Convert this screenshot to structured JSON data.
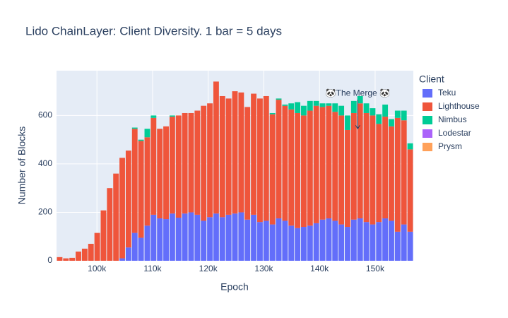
{
  "chart_data": {
    "type": "bar",
    "stacked": true,
    "title": "Lido ChainLayer: Client Diversity. 1 bar = 5 days",
    "x_label": "Epoch",
    "y_label": "Number of Blocks",
    "legend_title": "Client",
    "legend_position": "right",
    "grid": true,
    "x": [
      93300,
      94425,
      95550,
      96675,
      97800,
      98925,
      100050,
      101175,
      102300,
      103425,
      104550,
      105675,
      106800,
      107925,
      109050,
      110175,
      111300,
      112425,
      113550,
      114675,
      115800,
      116925,
      118050,
      119175,
      120300,
      121425,
      122550,
      123675,
      124800,
      125925,
      127050,
      128175,
      129300,
      130425,
      131550,
      132675,
      133800,
      134925,
      136050,
      137175,
      138300,
      139425,
      140550,
      141675,
      142800,
      143925,
      145050,
      146175,
      147300,
      148425,
      149550,
      150675,
      151800,
      152925,
      154050,
      155175,
      156300
    ],
    "series": [
      {
        "name": "Teku",
        "color": "#636efa",
        "values": [
          0,
          0,
          0,
          0,
          0,
          0,
          0,
          0,
          0,
          0,
          10,
          55,
          115,
          95,
          145,
          190,
          175,
          172,
          195,
          178,
          195,
          200,
          190,
          165,
          180,
          195,
          180,
          190,
          195,
          200,
          170,
          190,
          160,
          165,
          150,
          175,
          165,
          145,
          135,
          140,
          145,
          155,
          170,
          175,
          165,
          150,
          140,
          170,
          175,
          160,
          150,
          160,
          175,
          165,
          120,
          150,
          120
        ]
      },
      {
        "name": "Lighthouse",
        "color": "#ef553b",
        "values": [
          15,
          10,
          12,
          38,
          50,
          70,
          115,
          208,
          300,
          360,
          415,
          400,
          430,
          400,
          365,
          400,
          370,
          383,
          400,
          422,
          415,
          410,
          430,
          475,
          470,
          545,
          500,
          480,
          505,
          495,
          465,
          500,
          510,
          515,
          455,
          490,
          475,
          480,
          475,
          460,
          475,
          485,
          465,
          465,
          450,
          450,
          400,
          440,
          475,
          450,
          450,
          405,
          420,
          390,
          470,
          430,
          340
        ]
      },
      {
        "name": "Nimbus",
        "color": "#00cc96",
        "values": [
          0,
          0,
          0,
          0,
          0,
          0,
          0,
          0,
          0,
          0,
          0,
          0,
          5,
          5,
          35,
          10,
          0,
          0,
          5,
          0,
          0,
          0,
          0,
          0,
          0,
          0,
          0,
          0,
          0,
          0,
          0,
          0,
          0,
          0,
          5,
          5,
          5,
          25,
          45,
          40,
          40,
          20,
          15,
          10,
          35,
          40,
          60,
          50,
          30,
          40,
          30,
          40,
          50,
          30,
          30,
          40,
          25
        ]
      },
      {
        "name": "Lodestar",
        "color": "#ab63fa",
        "values": [
          0,
          0,
          0,
          0,
          0,
          0,
          0,
          0,
          0,
          0,
          0,
          0,
          0,
          0,
          0,
          0,
          0,
          0,
          0,
          0,
          0,
          0,
          0,
          0,
          0,
          0,
          0,
          0,
          0,
          0,
          0,
          0,
          0,
          0,
          0,
          0,
          0,
          0,
          0,
          0,
          0,
          0,
          0,
          0,
          0,
          0,
          0,
          0,
          0,
          0,
          0,
          0,
          0,
          0,
          0,
          0,
          0
        ]
      },
      {
        "name": "Prysm",
        "color": "#ffa15a",
        "values": [
          0,
          0,
          0,
          0,
          0,
          0,
          0,
          0,
          0,
          0,
          0,
          0,
          0,
          0,
          0,
          0,
          0,
          0,
          0,
          0,
          0,
          0,
          0,
          0,
          0,
          0,
          0,
          0,
          0,
          0,
          0,
          0,
          0,
          0,
          0,
          0,
          0,
          0,
          0,
          0,
          0,
          0,
          0,
          0,
          0,
          0,
          0,
          0,
          0,
          0,
          0,
          0,
          0,
          0,
          0,
          0,
          0
        ]
      }
    ],
    "bar_width": 1000,
    "xlim": [
      92737,
      156863
    ],
    "xticks": [
      {
        "value": 100000,
        "label": "100k"
      },
      {
        "value": 110000,
        "label": "110k"
      },
      {
        "value": 120000,
        "label": "120k"
      },
      {
        "value": 130000,
        "label": "130k"
      },
      {
        "value": 140000,
        "label": "140k"
      },
      {
        "value": 150000,
        "label": "150k"
      }
    ],
    "ylim": [
      0,
      785
    ],
    "yticks": [
      0,
      200,
      400,
      600
    ],
    "annotations": [
      {
        "text": "🐼The Merge 🐼",
        "x": 146875,
        "y": 545
      }
    ]
  }
}
